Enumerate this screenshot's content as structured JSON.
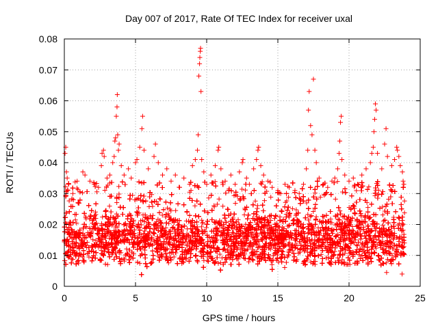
{
  "chart_data": {
    "type": "scatter",
    "title": "Day 007 of 2017, Rate Of TEC Index for receiver uxal",
    "xlabel": "GPS time / hours",
    "ylabel": "ROTI / TECUs",
    "xlim": [
      0,
      25
    ],
    "ylim": [
      0,
      0.08
    ],
    "xticks": [
      0,
      5,
      10,
      15,
      20,
      25
    ],
    "yticks": [
      0,
      0.01,
      0.02,
      0.03,
      0.04,
      0.05,
      0.06,
      0.07,
      0.08
    ],
    "xtick_labels": [
      "0",
      "5",
      "10",
      "15",
      "20",
      "25"
    ],
    "ytick_labels": [
      "0",
      "0.01",
      "0.02",
      "0.03",
      "0.04",
      "0.05",
      "0.06",
      "0.07",
      "0.08"
    ],
    "grid": true,
    "marker": "+",
    "color": "#ff0000",
    "series": [
      {
        "name": "ROTI",
        "points": [
          [
            0.05,
            0.043
          ],
          [
            0.1,
            0.045
          ],
          [
            0.15,
            0.037
          ],
          [
            0.2,
            0.035
          ],
          [
            0.3,
            0.033
          ],
          [
            0.1,
            0.029
          ],
          [
            0.25,
            0.031
          ],
          [
            0.6,
            0.03
          ],
          [
            0.9,
            0.034
          ],
          [
            1.3,
            0.037
          ],
          [
            1.45,
            0.036
          ],
          [
            1.8,
            0.034
          ],
          [
            2.1,
            0.033
          ],
          [
            2.4,
            0.032
          ],
          [
            2.6,
            0.039
          ],
          [
            2.65,
            0.043
          ],
          [
            2.75,
            0.044
          ],
          [
            2.8,
            0.042
          ],
          [
            3.0,
            0.035
          ],
          [
            3.2,
            0.036
          ],
          [
            3.4,
            0.04
          ],
          [
            3.5,
            0.042
          ],
          [
            3.55,
            0.047
          ],
          [
            3.6,
            0.048
          ],
          [
            3.65,
            0.055
          ],
          [
            3.7,
            0.058
          ],
          [
            3.72,
            0.062
          ],
          [
            3.75,
            0.049
          ],
          [
            3.8,
            0.044
          ],
          [
            3.85,
            0.046
          ],
          [
            4.0,
            0.039
          ],
          [
            4.2,
            0.036
          ],
          [
            4.5,
            0.038
          ],
          [
            4.7,
            0.035
          ],
          [
            5.0,
            0.04
          ],
          [
            5.1,
            0.041
          ],
          [
            5.3,
            0.045
          ],
          [
            5.45,
            0.051
          ],
          [
            5.5,
            0.055
          ],
          [
            5.6,
            0.044
          ],
          [
            5.9,
            0.038
          ],
          [
            6.3,
            0.042
          ],
          [
            6.4,
            0.046
          ],
          [
            6.6,
            0.04
          ],
          [
            6.9,
            0.036
          ],
          [
            7.2,
            0.038
          ],
          [
            7.5,
            0.034
          ],
          [
            7.8,
            0.036
          ],
          [
            8.1,
            0.032
          ],
          [
            8.4,
            0.035
          ],
          [
            8.8,
            0.033
          ],
          [
            9.0,
            0.039
          ],
          [
            9.2,
            0.041
          ],
          [
            9.35,
            0.044
          ],
          [
            9.4,
            0.049
          ],
          [
            9.45,
            0.068
          ],
          [
            9.5,
            0.072
          ],
          [
            9.52,
            0.074
          ],
          [
            9.55,
            0.076
          ],
          [
            9.57,
            0.077
          ],
          [
            9.6,
            0.063
          ],
          [
            9.65,
            0.041
          ],
          [
            9.8,
            0.037
          ],
          [
            10.0,
            0.033
          ],
          [
            10.3,
            0.036
          ],
          [
            10.6,
            0.039
          ],
          [
            10.8,
            0.044
          ],
          [
            10.85,
            0.045
          ],
          [
            11.0,
            0.038
          ],
          [
            11.3,
            0.034
          ],
          [
            11.7,
            0.036
          ],
          [
            12.0,
            0.033
          ],
          [
            12.3,
            0.037
          ],
          [
            12.5,
            0.04
          ],
          [
            12.55,
            0.041
          ],
          [
            12.8,
            0.035
          ],
          [
            13.0,
            0.033
          ],
          [
            13.3,
            0.038
          ],
          [
            13.5,
            0.041
          ],
          [
            13.6,
            0.044
          ],
          [
            13.65,
            0.045
          ],
          [
            13.8,
            0.039
          ],
          [
            14.0,
            0.036
          ],
          [
            14.3,
            0.034
          ],
          [
            14.6,
            0.032
          ],
          [
            15.0,
            0.031
          ],
          [
            15.2,
            0.03
          ],
          [
            15.5,
            0.033
          ],
          [
            15.8,
            0.032
          ],
          [
            16.2,
            0.031
          ],
          [
            16.5,
            0.03
          ],
          [
            16.8,
            0.033
          ],
          [
            17.0,
            0.038
          ],
          [
            17.1,
            0.044
          ],
          [
            17.15,
            0.057
          ],
          [
            17.2,
            0.063
          ],
          [
            17.3,
            0.052
          ],
          [
            17.4,
            0.049
          ],
          [
            17.5,
            0.067
          ],
          [
            17.6,
            0.044
          ],
          [
            17.7,
            0.04
          ],
          [
            17.9,
            0.035
          ],
          [
            18.2,
            0.033
          ],
          [
            18.5,
            0.032
          ],
          [
            18.8,
            0.034
          ],
          [
            19.0,
            0.035
          ],
          [
            19.2,
            0.038
          ],
          [
            19.3,
            0.043
          ],
          [
            19.35,
            0.047
          ],
          [
            19.4,
            0.053
          ],
          [
            19.45,
            0.055
          ],
          [
            19.5,
            0.041
          ],
          [
            19.7,
            0.036
          ],
          [
            20.0,
            0.034
          ],
          [
            20.3,
            0.035
          ],
          [
            20.6,
            0.033
          ],
          [
            20.9,
            0.036
          ],
          [
            21.2,
            0.038
          ],
          [
            21.5,
            0.04
          ],
          [
            21.6,
            0.043
          ],
          [
            21.7,
            0.045
          ],
          [
            21.75,
            0.05
          ],
          [
            21.8,
            0.054
          ],
          [
            21.85,
            0.059
          ],
          [
            21.9,
            0.057
          ],
          [
            22.0,
            0.043
          ],
          [
            22.3,
            0.038
          ],
          [
            22.5,
            0.046
          ],
          [
            22.6,
            0.051
          ],
          [
            22.7,
            0.042
          ],
          [
            23.0,
            0.039
          ],
          [
            23.2,
            0.041
          ],
          [
            23.35,
            0.045
          ],
          [
            23.4,
            0.044
          ],
          [
            23.5,
            0.042
          ],
          [
            23.6,
            0.039
          ],
          [
            23.75,
            0.037
          ],
          [
            23.8,
            0.034
          ],
          [
            23.85,
            0.033
          ]
        ]
      }
    ],
    "dense_cloud": {
      "x_range": [
        0.0,
        23.9
      ],
      "baseline_min": 0.007,
      "core_center": 0.015,
      "core_spread": 0.008,
      "upper_typical": 0.03,
      "lower_min": 0.002,
      "density_per_hour": 520
    }
  }
}
